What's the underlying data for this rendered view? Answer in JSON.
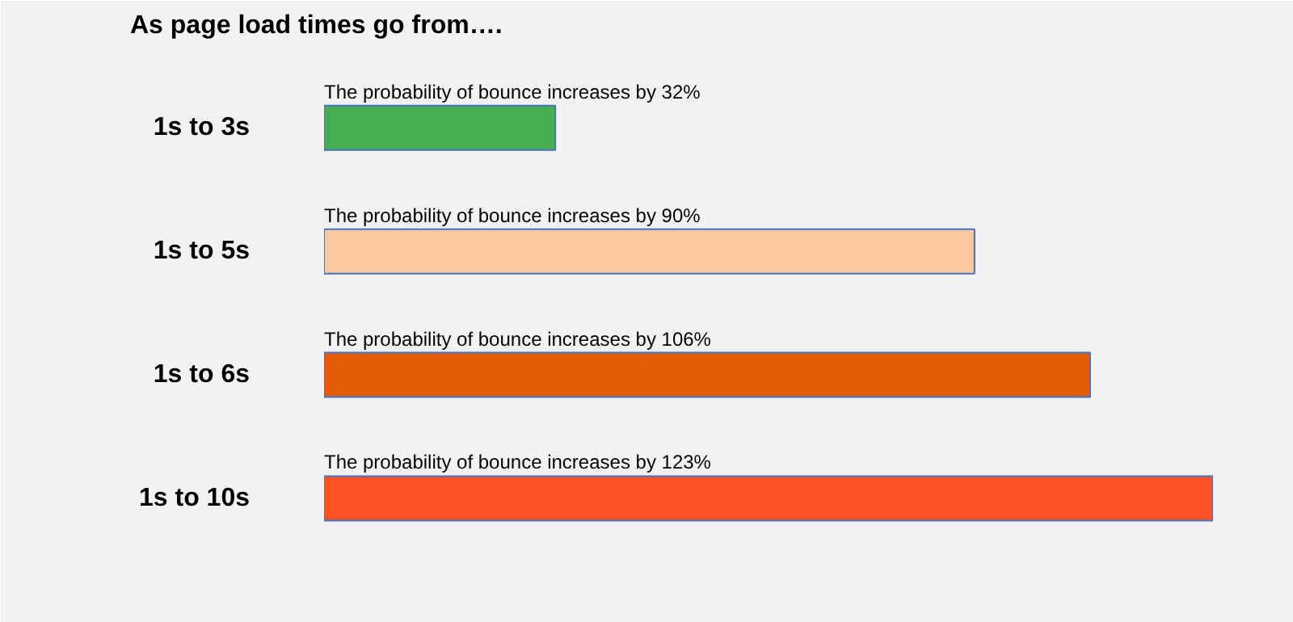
{
  "chart_data": {
    "type": "bar",
    "orientation": "horizontal",
    "title": "As page load times go from….",
    "categories": [
      "1s to 3s",
      "1s to 5s",
      "1s to 6s",
      "1s to 10s"
    ],
    "values": [
      32,
      90,
      106,
      123
    ],
    "colors": [
      "#46ae4f",
      "#fdc99f",
      "#e35c06",
      "#ff5126"
    ],
    "value_labels": [
      "The probability of bounce increases by 32%",
      "The probability of bounce increases by 90%",
      "The probability of bounce increases by 106%",
      "The probability of bounce increases by 123%"
    ],
    "grid": false
  }
}
